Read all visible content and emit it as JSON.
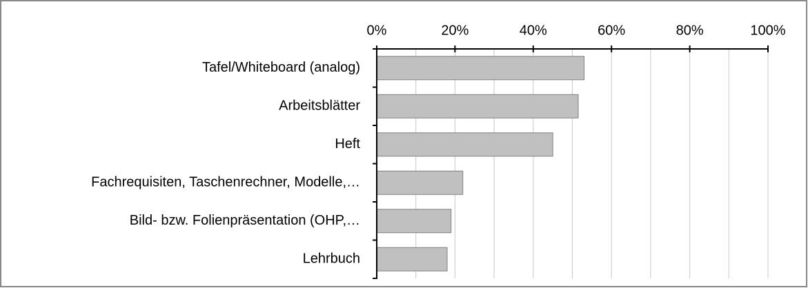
{
  "chart_data": {
    "type": "bar",
    "orientation": "horizontal",
    "categories": [
      "Tafel/Whiteboard (analog)",
      "Arbeitsblätter",
      "Heft",
      "Fachrequisiten, Taschenrechner, Modelle,…",
      "Bild- bzw. Folienpräsentation (OHP,…",
      "Lehrbuch"
    ],
    "values": [
      53,
      51.5,
      45,
      22,
      19,
      18
    ],
    "color": "#c0c0c0",
    "xlim": [
      0,
      100
    ],
    "xticks": [
      {
        "value": 0,
        "label": "0%"
      },
      {
        "value": 20,
        "label": "20%"
      },
      {
        "value": 40,
        "label": "40%"
      },
      {
        "value": 60,
        "label": "60%"
      },
      {
        "value": 80,
        "label": "80%"
      },
      {
        "value": 100,
        "label": "100%"
      }
    ],
    "minor_xticks": [
      10,
      30,
      50,
      70,
      90
    ],
    "grid": true
  }
}
